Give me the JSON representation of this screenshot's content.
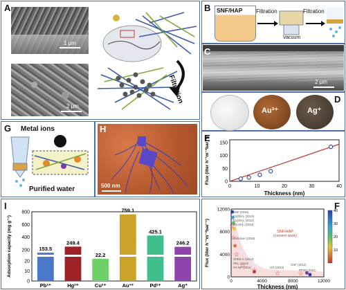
{
  "panels": {
    "a": "A",
    "b": "B",
    "c": "C",
    "d": "D",
    "e": "E",
    "f": "F",
    "g": "G",
    "h": "H",
    "i": "I"
  },
  "panel_a": {
    "scale_top": "1 μm",
    "scale_bottom": "2 μm",
    "arrow_label": "Filtration"
  },
  "panel_b": {
    "box_label": "SNF/HAP",
    "step1": "Filtration",
    "step2": "Filtration",
    "vacuum": "Vacuum"
  },
  "panel_c": {
    "scale": "2 μm"
  },
  "panel_d": {
    "ions": [
      "Au³⁺",
      "Ag⁺"
    ]
  },
  "panel_g": {
    "title": "Metal ions",
    "caption": "Purified water"
  },
  "panel_h": {
    "scale": "500 nm"
  },
  "panel_e": {
    "chart_data": {
      "type": "scatter",
      "xlabel": "Thickness (nm)",
      "ylabel": "Flux (liter h⁻¹m⁻²bar⁻¹)",
      "xlim": [
        0,
        40
      ],
      "ylim": [
        0,
        160
      ],
      "xticks": [
        0,
        10,
        20,
        30,
        40
      ],
      "yticks": [
        0,
        50,
        100,
        150
      ],
      "x": [
        4,
        7,
        11,
        15,
        37
      ],
      "y": [
        10,
        15,
        25,
        39,
        133
      ],
      "fit": {
        "x": [
          0,
          40
        ],
        "y": [
          0,
          143
        ]
      },
      "colors": {
        "point": "#3a4fa0",
        "line": "#c0392b"
      }
    }
  },
  "panel_f": {
    "chart_data": {
      "type": "scatter",
      "xlabel": "Thickness (nm)",
      "ylabel": "Flux (liter h⁻¹m⁻²bar⁻¹)",
      "xlim": [
        0,
        12000
      ],
      "ylim": [
        0,
        12000
      ],
      "xticks": [
        0,
        4000,
        8000,
        12000
      ],
      "yticks": [
        0,
        4000,
        8000,
        12000
      ],
      "refs": [
        "SNF (2016)",
        "Cd(OH)₂ (2013)",
        "Cu(OH)₂ (2013)",
        "Zn(OH)₂ (2013)",
        "Cellulose (2016)",
        "SPEK-C (2013)",
        "WS₂ (2014)",
        "PS NP (2011)",
        "GO (2013)",
        "CNF (2012)",
        "PP2R (2011)"
      ],
      "annotation": "SNF/HAP\n(current work)",
      "stars": {
        "x": [
          100,
          300,
          700,
          1500,
          3000,
          6000,
          9000
        ],
        "y": [
          9000,
          7000,
          4000,
          2000,
          1200,
          700,
          600
        ]
      },
      "others": {
        "x": [
          150,
          200,
          300,
          400,
          500,
          3000,
          9800,
          10200
        ],
        "y": [
          11500,
          10500,
          9500,
          8500,
          5500,
          900,
          700,
          400
        ]
      },
      "colorbar": {
        "max": 40,
        "ticks": [
          40,
          30,
          20,
          10
        ]
      }
    }
  },
  "panel_i": {
    "chart_data": {
      "type": "bar",
      "ylabel": "Adsorption capacity (mg g⁻¹)",
      "categories": [
        "Pb²⁺",
        "Hg²⁺",
        "Cu²⁺",
        "Au³⁺",
        "Pd²⁺",
        "Ag⁺"
      ],
      "values": [
        153.5,
        249.4,
        22.2,
        759.1,
        425.1,
        246.2
      ],
      "value_labels": [
        "153.5",
        "249.4",
        "22.2",
        "759.1",
        "425.1",
        "246.2"
      ],
      "yticks_low": [
        "0",
        "10",
        "20"
      ],
      "yticks_high": [
        "200",
        "400",
        "600",
        "800"
      ],
      "colors": [
        "#4a78c8",
        "#9b2226",
        "#6fcf68",
        "#c9a227",
        "#3fbf8c",
        "#8e44ad"
      ]
    }
  }
}
